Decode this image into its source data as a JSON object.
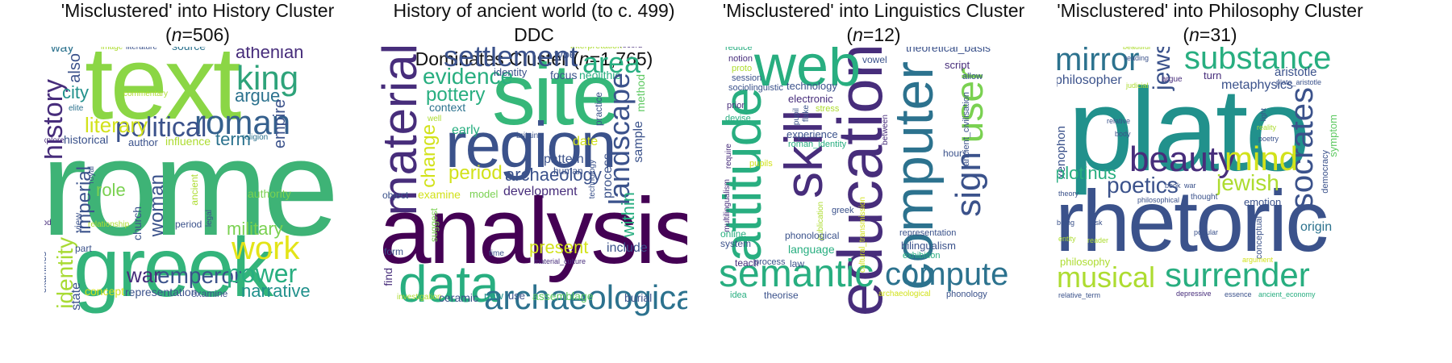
{
  "panels": [
    {
      "title_line1": "'Misclustered' into History Cluster",
      "title_pre": "(",
      "title_n": "n",
      "title_post": "=506)",
      "words": {
        "rome": "rome",
        "text": "text",
        "greek": "greek",
        "roman": "roman",
        "political": "political",
        "king": "king",
        "history": "history",
        "literary": "literary",
        "work": "work",
        "power": "power",
        "war": "war",
        "emperor": "emperor",
        "identity": "identity",
        "imperial": "imperial",
        "woman": "woman",
        "athenian": "athenian",
        "narrative": "narrative",
        "military": "military",
        "argue": "argue",
        "empire": "empire",
        "term": "term",
        "role": "role",
        "city": "city",
        "also": "also",
        "state": "state",
        "authority": "authority",
        "influence": "influence",
        "way": "way",
        "image": "image",
        "literature": "literature",
        "source": "source",
        "commentary": "commentary",
        "elite": "elite",
        "explore": "explore",
        "historical": "historical",
        "author": "author",
        "religion": "religion",
        "royal": "royal",
        "church": "church",
        "ancient": "ancient",
        "legal": "legal",
        "god": "god",
        "view": "view",
        "relationship": "relationship",
        "period": "period",
        "part": "part",
        "concept": "concept",
        "representation": "representation",
        "examine": "examine",
        "examines": "examines"
      }
    },
    {
      "title_line1": "History of ancient world (to c. 499) DDC",
      "title_pre": "Dominates Cluster (",
      "title_n": "n",
      "title_post": "=1,765)",
      "words": {
        "analysis": "analysis",
        "site": "site",
        "region": "region",
        "data": "data",
        "archaeological": "archaeological",
        "material": "material",
        "settlement": "settlement",
        "area": "area",
        "landscape": "landscape",
        "evidence": "evidence",
        "pottery": "pottery",
        "period": "period",
        "archaeology": "archaeology",
        "development": "development",
        "change": "change",
        "present": "present",
        "include": "include",
        "within": "within",
        "process": "process",
        "sample": "sample",
        "method": "method",
        "neolithic": "neolithic",
        "focus": "focus",
        "type": "type",
        "identity": "identity",
        "interpretation": "interpretation",
        "record": "record",
        "context": "context",
        "well": "well",
        "early": "early",
        "date": "date",
        "pattern": "pattern",
        "human": "human",
        "practice": "practice",
        "britain": "britain",
        "examine": "examine",
        "model": "model",
        "object": "object",
        "suggest": "suggest",
        "technology": "technology",
        "form": "form",
        "find": "find",
        "time": "time",
        "material_culture": "material_culture",
        "investigation": "investigation",
        "ceramic": "ceramic",
        "new": "new",
        "use": "use",
        "assemblage": "assemblage",
        "burial": "burial"
      }
    },
    {
      "title_line1": "'Misclustered' into Linguistics Cluster",
      "title_pre": "(",
      "title_n": "n",
      "title_post": "=12)",
      "words": {
        "education": "education",
        "web": "web",
        "computer": "computer",
        "attitude": "attitude",
        "skill": "skill",
        "semantic": "semantic",
        "compute": "compute",
        "user": "user",
        "sign": "sign",
        "theoretical_basis": "theoretical_basis",
        "script": "script",
        "allow": "allow",
        "vowel": "vowel",
        "ancient_civilisation": "ancient_civilisation",
        "hours": "hours",
        "reduce": "reduce",
        "notion": "notion",
        "proto": "proto",
        "session": "session",
        "sociolinguistic": "sociolinguistic",
        "technology": "technology",
        "electronic": "electronic",
        "prior": "prior",
        "devise": "devise",
        "pupil": "pupil",
        "flake": "flake",
        "stress": "stress",
        "experience": "experience",
        "roman_identity": "roman_identity",
        "between": "between",
        "require": "require",
        "pupils": "pupils",
        "multilingualism": "multilingualism",
        "publication": "publication",
        "greek": "greek",
        "cultural_transmission": "cultural_transmission",
        "online": "online",
        "system": "system",
        "phonological": "phonological",
        "language": "language",
        "representation": "representation",
        "bilingualism": "bilingualism",
        "exhibition": "exhibition",
        "teach": "teach",
        "process": "process",
        "law": "law",
        "idea": "idea",
        "theorise": "theorise",
        "archaeological": "archaeological",
        "phonology": "phonology"
      }
    },
    {
      "title_line1": "'Misclustered' into Philosophy Cluster",
      "title_pre": "(",
      "title_n": "n",
      "title_post": "=31)",
      "words": {
        "plato": "plato",
        "rhetoric": "rhetoric",
        "substance": "substance",
        "mirror": "mirror",
        "socrates": "socrates",
        "beauty": "beauty",
        "surrender": "surrender",
        "mind": "mind",
        "musical": "musical",
        "jews": "jews",
        "poetics": "poetics",
        "jewish": "jewish",
        "philosopher": "philosopher",
        "metaphysics": "metaphysics",
        "aristotle": "aristotle",
        "plato_aristotle": "plato_aristotle",
        "turn": "turn",
        "argue": "argue",
        "judicial": "judicial",
        "reading": "reading",
        "beautiful": "beautiful",
        "relative": "relative",
        "body": "body",
        "light": "light",
        "reality": "reality",
        "poetry": "poetry",
        "symptom": "symptom",
        "xenophon": "xenophon",
        "plotinus": "plotinus",
        "democracy": "democracy",
        "emotion": "emotion",
        "origin": "origin",
        "theory": "theory",
        "book": "book",
        "war": "war",
        "thought": "thought",
        "philosophical": "philosophical",
        "being": "being",
        "task": "task",
        "entity": "entity",
        "reader": "reader",
        "popular": "popular",
        "argument": "argument",
        "conceptual": "conceptual",
        "philosophy": "philosophy",
        "relative_term": "relative_term",
        "depressive": "depressive",
        "essence": "essence",
        "ancient_economy": "ancient_economy"
      }
    }
  ],
  "colors": {
    "dark_purple": "#440154",
    "purple": "#472d7b",
    "indigo": "#3b528b",
    "blue": "#2c728e",
    "teal": "#21918c",
    "green_teal": "#28ae80",
    "green": "#5ec962",
    "lime": "#addc30",
    "yellow": "#fde725"
  }
}
